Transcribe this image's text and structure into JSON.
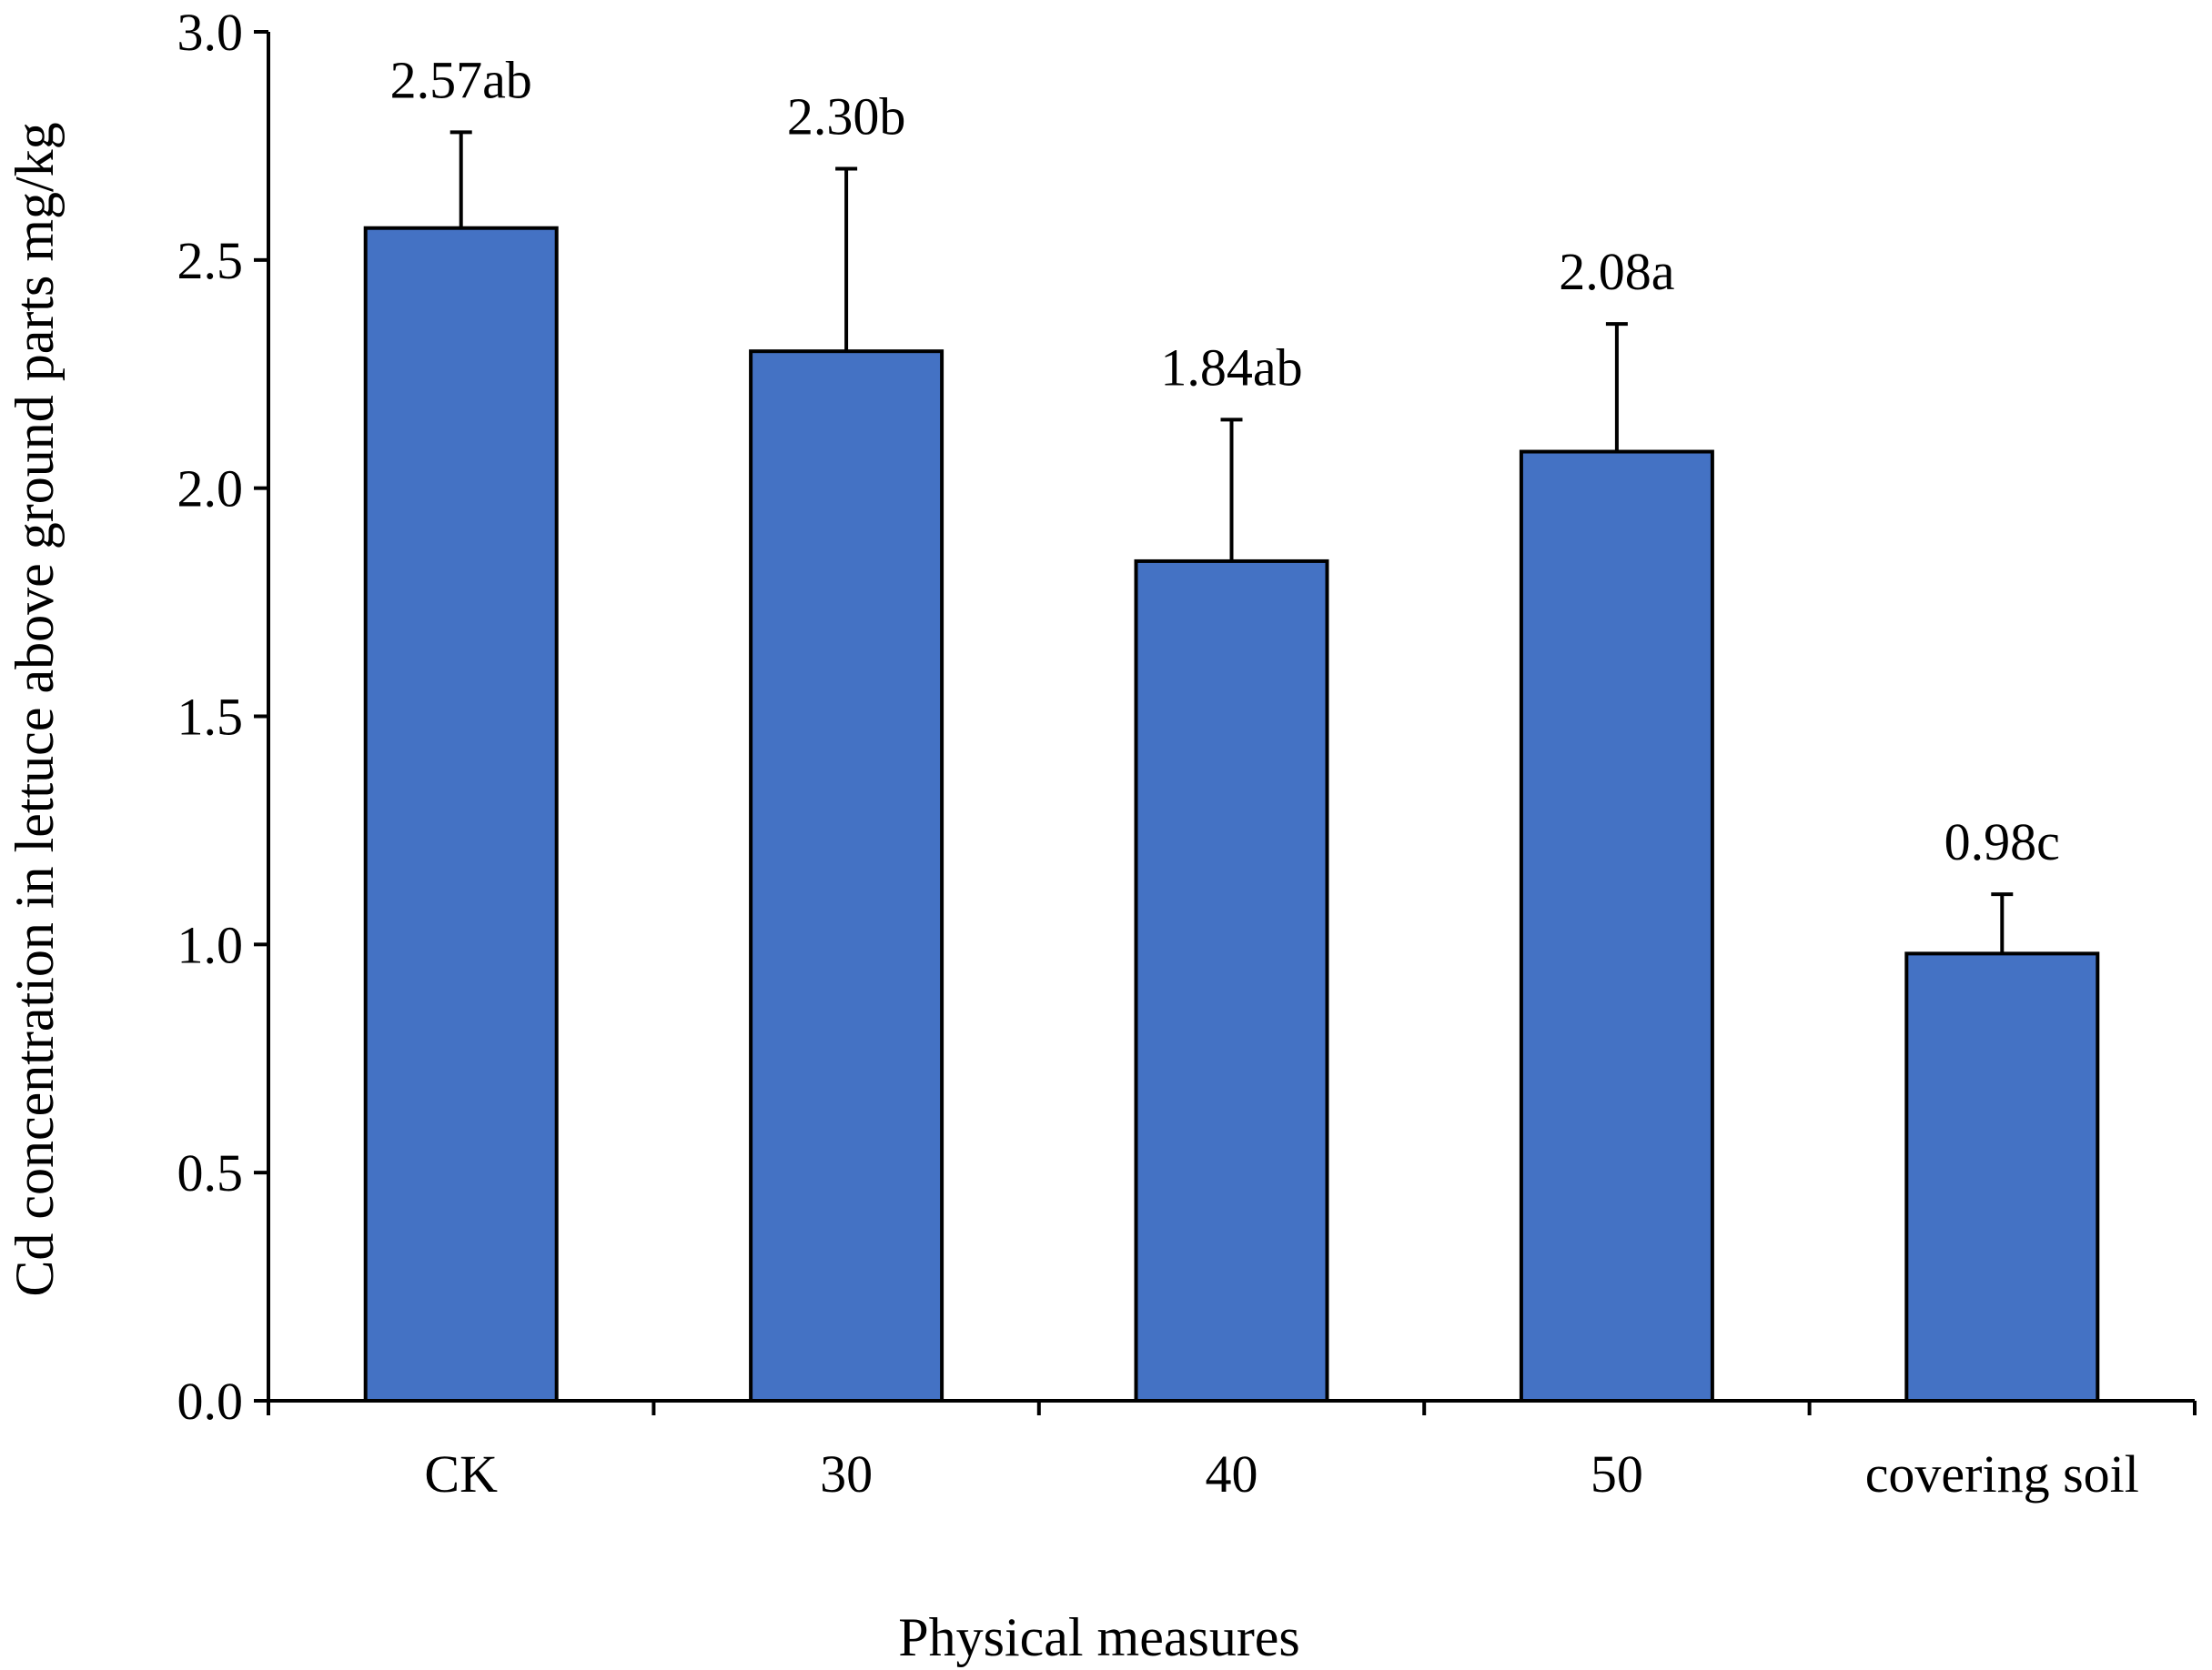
{
  "chart_data": {
    "type": "bar",
    "title": "",
    "xlabel": "Physical measures",
    "ylabel": "Cd concentration in lettuce above ground parts  mg/kg",
    "categories": [
      "CK",
      "30",
      "40",
      "50",
      "covering soil"
    ],
    "values": [
      2.57,
      2.3,
      1.84,
      2.08,
      0.98
    ],
    "error_upper": [
      0.21,
      0.4,
      0.31,
      0.28,
      0.13
    ],
    "data_labels": [
      "2.57ab",
      "2.30b",
      "1.84ab",
      "2.08a",
      "0.98c"
    ],
    "ylim": [
      0.0,
      3.0
    ],
    "yticks": [
      0.0,
      0.5,
      1.0,
      1.5,
      2.0,
      2.5,
      3.0
    ],
    "ytick_labels": [
      "0.0",
      "0.5",
      "1.0",
      "1.5",
      "2.0",
      "2.5",
      "3.0"
    ],
    "grid": false,
    "legend": "none"
  },
  "colors": {
    "bar_fill": "#4472C4",
    "bar_stroke": "#000000",
    "axis": "#000000"
  }
}
